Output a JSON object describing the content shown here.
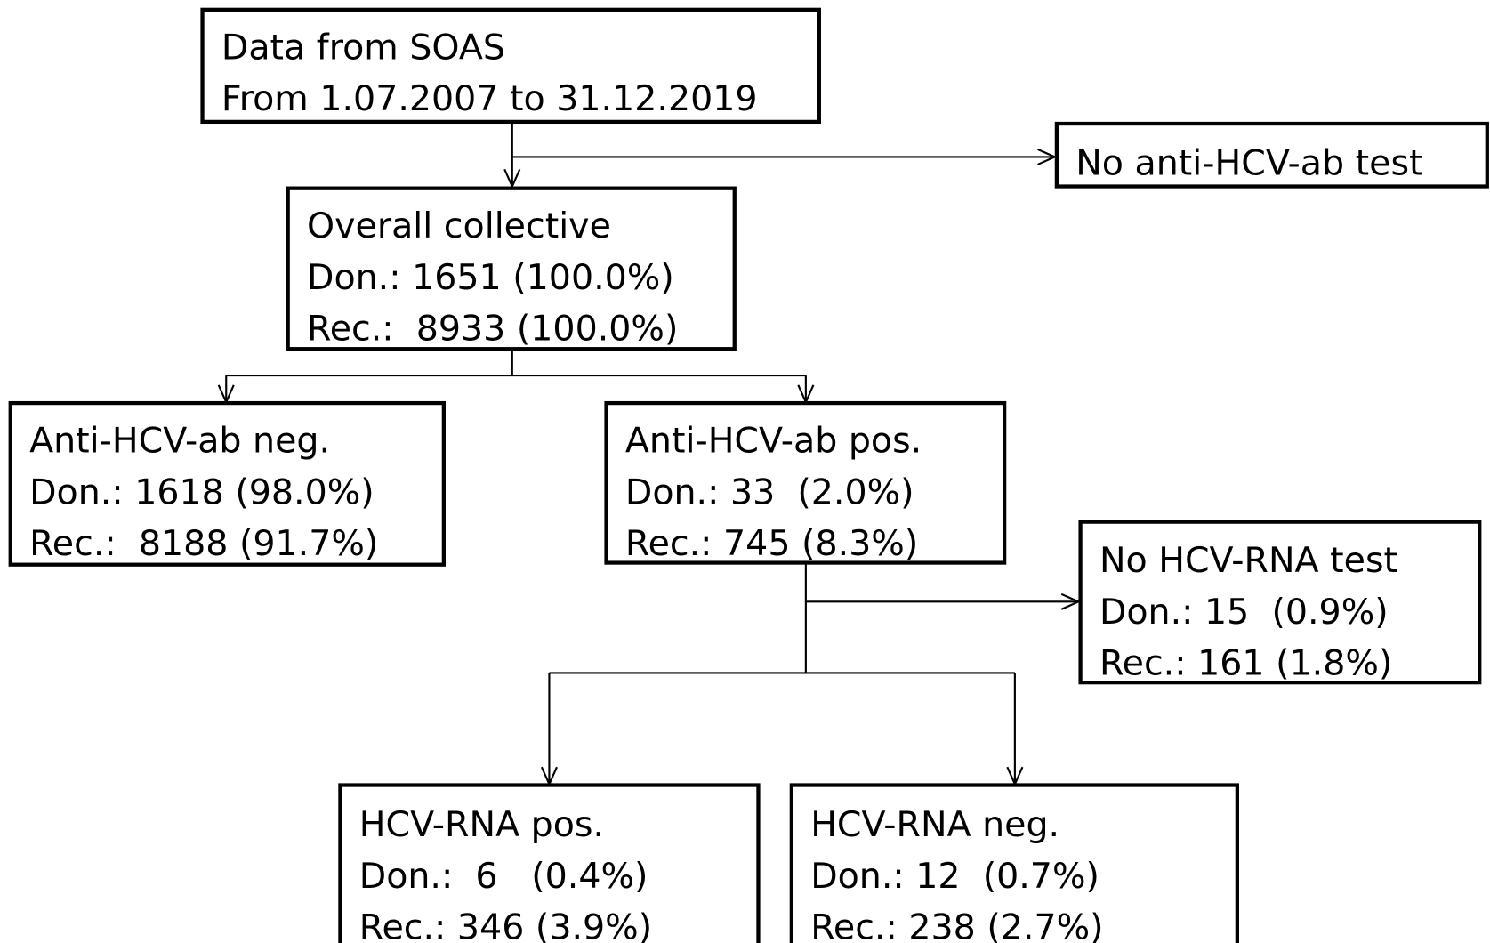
{
  "nodes": [
    {
      "lines": [
        "Data from SOAS",
        "From 1.07.2007 to 31.12.2019"
      ]
    },
    {
      "lines": [
        "No anti-HCV-ab test"
      ]
    },
    {
      "lines": [
        "Overall collective",
        "Don.: 1651 (100.0%)",
        "Rec.:  8933 (100.0%)"
      ]
    },
    {
      "lines": [
        "Anti-HCV-ab neg.",
        "Don.: 1618 (98.0%)",
        "Rec.:  8188 (91.7%)"
      ]
    },
    {
      "lines": [
        "Anti-HCV-ab pos.",
        "Don.: 33  (2.0%)",
        "Rec.: 745 (8.3%)"
      ]
    },
    {
      "lines": [
        "No HCV-RNA test",
        "Don.: 15  (0.9%)",
        "Rec.: 161 (1.8%)"
      ]
    },
    {
      "lines": [
        "HCV-RNA pos.",
        "Don.:  6   (0.4%)",
        "Rec.: 346 (3.9%)"
      ]
    },
    {
      "lines": [
        "HCV-RNA neg.",
        "Don.: 12  (0.7%)",
        "Rec.: 238 (2.7%)"
      ]
    }
  ]
}
